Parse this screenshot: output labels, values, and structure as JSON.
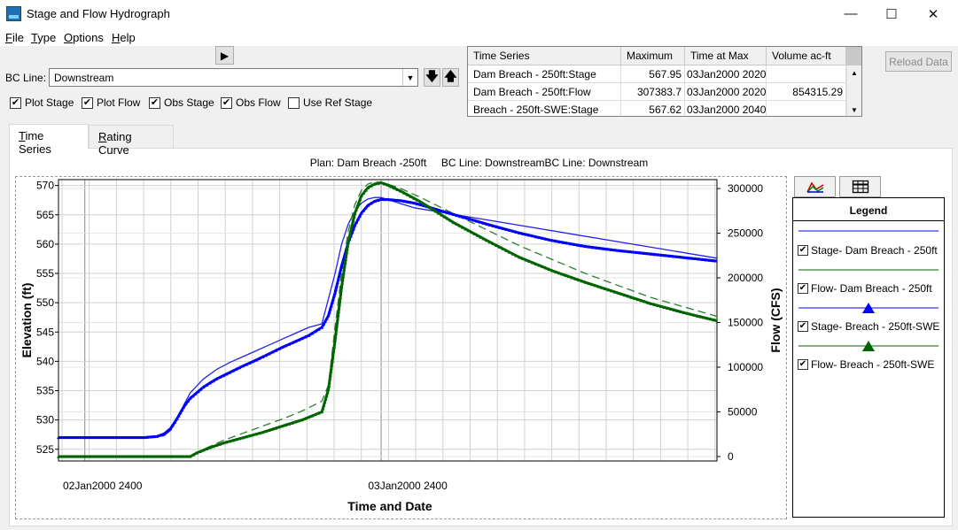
{
  "window": {
    "title": "Stage and Flow Hydrograph",
    "minimize_glyph": "—",
    "maximize_glyph": "☐",
    "close_glyph": "✕"
  },
  "menu": [
    {
      "accel": "F",
      "rest": "ile"
    },
    {
      "accel": "T",
      "rest": "ype"
    },
    {
      "accel": "O",
      "rest": "ptions"
    },
    {
      "accel": "H",
      "rest": "elp"
    }
  ],
  "controls": {
    "play_glyph": "▶",
    "bc_line_label": "BC Line:",
    "bc_line_value": "Downstream",
    "down_glyph": "🡇",
    "up_glyph": "🡅",
    "checkboxes": [
      {
        "label": "Plot Stage",
        "checked": true
      },
      {
        "label": "Plot Flow",
        "checked": true
      },
      {
        "label": "Obs Stage",
        "checked": true
      },
      {
        "label": "Obs Flow",
        "checked": true
      },
      {
        "label": "Use Ref Stage",
        "checked": false
      }
    ],
    "reload_label": "Reload Data"
  },
  "table": {
    "headers": [
      "Time Series",
      "Maximum",
      "Time at Max",
      "Volume ac-ft"
    ],
    "rows": [
      [
        "Dam Breach - 250ft:Stage",
        "567.95",
        "03Jan2000 2020",
        ""
      ],
      [
        "Dam Breach - 250ft:Flow",
        "307383.7",
        "03Jan2000 2020",
        "854315.29"
      ],
      [
        "Breach - 250ft-SWE:Stage",
        "567.62",
        "03Jan2000 2040",
        ""
      ]
    ]
  },
  "tabs": [
    {
      "label": "Time Series",
      "accel": "T",
      "active": true
    },
    {
      "label": "Rating Curve",
      "accel": "R",
      "active": false
    }
  ],
  "plot_header": "Plan: Dam Breach -250ft     BC Line: DownstreamBC Line: Downstream",
  "legend": {
    "title": "Legend",
    "items": [
      {
        "label": "Stage- Dam Breach - 250ft",
        "checked": true,
        "color": "#0000ff",
        "marker": "none"
      },
      {
        "label": "Flow- Dam Breach - 250ft",
        "checked": true,
        "color": "#006400",
        "marker": "none"
      },
      {
        "label": "Stage- Breach - 250ft-SWE",
        "checked": true,
        "color": "#0000ff",
        "marker": "triangle"
      },
      {
        "label": "Flow- Breach - 250ft-SWE",
        "checked": true,
        "color": "#006400",
        "marker": "triangle"
      }
    ]
  },
  "chart_data": {
    "type": "line",
    "xlabel": "Time and Date",
    "ylabel": "Elevation (ft)",
    "y2label": "Flow (CFS)",
    "xticks": [
      "02Jan2000 2400",
      "03Jan2000 2400"
    ],
    "ylim": [
      523,
      571
    ],
    "yticks": [
      525,
      530,
      535,
      540,
      545,
      550,
      555,
      560,
      565,
      570
    ],
    "y2lim": [
      -5000,
      310000
    ],
    "y2ticks": [
      0,
      50000,
      100000,
      150000,
      200000,
      250000,
      300000
    ],
    "xlim": [
      0,
      100
    ],
    "series": [
      {
        "name": "Stage- Dam Breach - 250ft",
        "axis": "left",
        "color": "#2222ee",
        "width": 1.3,
        "marker": "none",
        "dash": "",
        "x": [
          0,
          14,
          16,
          17,
          18,
          19,
          20,
          22,
          24,
          26,
          28,
          30,
          32,
          34,
          36,
          38,
          40,
          42,
          43,
          44,
          45,
          46,
          47,
          48,
          49,
          50,
          52,
          54,
          100
        ],
        "y": [
          527,
          527,
          527.3,
          528.2,
          530,
          532.5,
          534.6,
          537,
          538.6,
          539.8,
          540.8,
          541.8,
          542.8,
          543.8,
          544.8,
          545.8,
          546.4,
          555,
          560,
          563.4,
          565.6,
          567,
          567.7,
          567.95,
          567.95,
          567.6,
          566.9,
          566.2,
          557.6
        ]
      },
      {
        "name": "Flow- Dam Breach - 250ft",
        "axis": "right",
        "color": "#2e7d32",
        "width": 1.3,
        "marker": "none",
        "dash": "9,5",
        "x": [
          0,
          20,
          22,
          25,
          28,
          31,
          34,
          37,
          40,
          41,
          42,
          43,
          44,
          45,
          46,
          47,
          48,
          49,
          50,
          52,
          55,
          60,
          70,
          80,
          90,
          100
        ],
        "y": [
          0,
          0,
          8000,
          18000,
          26000,
          34000,
          42000,
          51000,
          62000,
          80000,
          145000,
          205000,
          252000,
          282000,
          298000,
          305000,
          307383.7,
          307000,
          305000,
          300000,
          290000,
          272000,
          236000,
          205000,
          178000,
          157000
        ]
      },
      {
        "name": "Stage- Breach - 250ft-SWE",
        "axis": "left",
        "color": "#0000ff",
        "width": 3,
        "marker": "triangle",
        "dash": "",
        "x": [
          0,
          13,
          15,
          16,
          17,
          18,
          19,
          20,
          22,
          24,
          26,
          28,
          30,
          32,
          34,
          36,
          38,
          40,
          41,
          42,
          43,
          44,
          45,
          46,
          47,
          48,
          49,
          50,
          52,
          54,
          56,
          58,
          62,
          66,
          70,
          75,
          80,
          85,
          90,
          95,
          100
        ],
        "y": [
          527,
          527,
          527.2,
          527.6,
          528.5,
          530.2,
          532.2,
          533.7,
          535.6,
          537,
          538.1,
          539.2,
          540.2,
          541.3,
          542.4,
          543.4,
          544.4,
          545.8,
          547.8,
          551.7,
          556.3,
          560.2,
          563.2,
          565.3,
          566.6,
          567.3,
          567.62,
          567.6,
          567.4,
          567,
          566.4,
          565.7,
          564.4,
          563.1,
          561.9,
          560.6,
          559.6,
          558.9,
          558.3,
          557.7,
          557.1
        ]
      },
      {
        "name": "Flow- Breach - 250ft-SWE",
        "axis": "right",
        "color": "#006400",
        "width": 3,
        "marker": "triangle",
        "dash": "",
        "x": [
          0,
          20,
          21,
          23,
          25,
          28,
          31,
          34,
          37,
          40,
          41,
          42,
          43,
          44,
          45,
          46,
          47,
          48,
          49,
          50,
          52,
          55,
          60,
          65,
          70,
          75,
          80,
          85,
          90,
          95,
          100
        ],
        "y": [
          0,
          0,
          4000,
          10000,
          15000,
          21000,
          27000,
          34000,
          41000,
          50000,
          75000,
          130000,
          190000,
          240000,
          272000,
          292000,
          301000,
          305000,
          306500,
          304000,
          297000,
          285000,
          262000,
          242000,
          223000,
          208000,
          195000,
          183000,
          171000,
          161000,
          152000
        ]
      }
    ]
  }
}
